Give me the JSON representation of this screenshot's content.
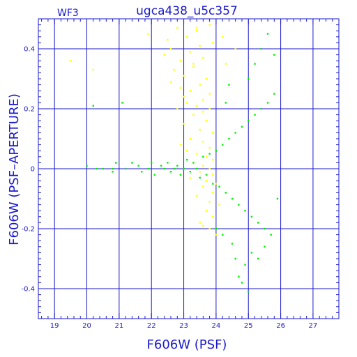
{
  "chart_data": {
    "type": "scatter",
    "title": "ugca438_u5c357",
    "panel_label": "WF3",
    "xlabel": "F606W (PSF)",
    "ylabel": "F606W (PSF–APERTURE)",
    "xlim": [
      18.5,
      27.8
    ],
    "ylim": [
      -0.5,
      0.5
    ],
    "x_ticks": [
      19,
      20,
      21,
      22,
      23,
      24,
      25,
      26,
      27
    ],
    "x_tick_labels": [
      "19",
      "20",
      "21",
      "22",
      "23",
      "24",
      "25",
      "26",
      "27"
    ],
    "y_ticks": [
      -0.4,
      -0.2,
      0,
      0.2,
      0.4
    ],
    "y_tick_labels": [
      "-0.4",
      "-0.2",
      "0",
      "0.2",
      "0.4"
    ],
    "grid": true,
    "colors": {
      "frame": "#1a1acc",
      "text": "#1a1acc"
    },
    "series": [
      {
        "color": "#ffff00",
        "points": [
          [
            19.5,
            0.36
          ],
          [
            20.2,
            0.33
          ],
          [
            21.9,
            0.45
          ],
          [
            22.5,
            0.43
          ],
          [
            22.6,
            0.4
          ],
          [
            22.8,
            0.47
          ],
          [
            22.9,
            0.36
          ],
          [
            23.1,
            0.44
          ],
          [
            23.2,
            0.39
          ],
          [
            23.4,
            0.46
          ],
          [
            23.5,
            0.41
          ],
          [
            23.6,
            0.37
          ],
          [
            23.8,
            0.48
          ],
          [
            22.7,
            0.33
          ],
          [
            23.0,
            0.31
          ],
          [
            23.3,
            0.34
          ],
          [
            23.7,
            0.3
          ],
          [
            22.9,
            0.27
          ],
          [
            23.2,
            0.26
          ],
          [
            23.5,
            0.28
          ],
          [
            23.8,
            0.25
          ],
          [
            23.1,
            0.22
          ],
          [
            23.4,
            0.21
          ],
          [
            23.6,
            0.23
          ],
          [
            22.8,
            0.2
          ],
          [
            23.3,
            0.18
          ],
          [
            23.7,
            0.16
          ],
          [
            23.0,
            0.15
          ],
          [
            23.5,
            0.13
          ],
          [
            23.9,
            0.12
          ],
          [
            23.2,
            0.1
          ],
          [
            23.6,
            0.09
          ],
          [
            23.8,
            0.07
          ],
          [
            23.1,
            0.06
          ],
          [
            23.4,
            0.05
          ],
          [
            23.7,
            0.04
          ],
          [
            23.9,
            0.03
          ],
          [
            23.3,
            0.02
          ],
          [
            23.6,
            0.01
          ],
          [
            23.8,
            0.0
          ],
          [
            23.5,
            -0.01
          ],
          [
            23.9,
            -0.02
          ],
          [
            23.2,
            -0.03
          ],
          [
            23.7,
            -0.04
          ],
          [
            24.0,
            -0.05
          ],
          [
            23.6,
            -0.06
          ],
          [
            23.9,
            -0.08
          ],
          [
            23.4,
            -0.09
          ],
          [
            23.8,
            -0.11
          ],
          [
            24.1,
            -0.12
          ],
          [
            23.7,
            -0.14
          ],
          [
            23.9,
            -0.16
          ],
          [
            23.5,
            -0.18
          ],
          [
            23.8,
            -0.2
          ],
          [
            24.0,
            -0.22
          ],
          [
            23.6,
            -0.19
          ],
          [
            23.3,
            0.35
          ],
          [
            22.6,
            0.29
          ],
          [
            23.9,
            0.42
          ],
          [
            23.4,
            0.47
          ],
          [
            22.4,
            0.38
          ],
          [
            24.3,
            0.35
          ],
          [
            24.6,
            0.4
          ],
          [
            24.2,
            0.44
          ],
          [
            23.0,
            0.24
          ],
          [
            23.6,
            0.19
          ],
          [
            22.9,
            0.08
          ],
          [
            23.8,
            0.2
          ]
        ]
      },
      {
        "color": "#00ee00",
        "points": [
          [
            20.0,
            0.01
          ],
          [
            20.2,
            0.21
          ],
          [
            20.3,
            0.0
          ],
          [
            20.5,
            0.0
          ],
          [
            20.8,
            0.0
          ],
          [
            20.8,
            -0.01
          ],
          [
            20.9,
            0.02
          ],
          [
            21.1,
            0.22
          ],
          [
            21.2,
            0.0
          ],
          [
            21.4,
            0.02
          ],
          [
            21.6,
            0.01
          ],
          [
            21.7,
            -0.01
          ],
          [
            21.9,
            0.0
          ],
          [
            22.0,
            0.02
          ],
          [
            22.1,
            -0.02
          ],
          [
            22.3,
            0.01
          ],
          [
            22.4,
            0.0
          ],
          [
            22.5,
            0.02
          ],
          [
            22.6,
            -0.01
          ],
          [
            22.7,
            0.0
          ],
          [
            22.8,
            0.01
          ],
          [
            22.9,
            -0.02
          ],
          [
            23.0,
            0.0
          ],
          [
            23.1,
            0.03
          ],
          [
            23.2,
            -0.01
          ],
          [
            23.3,
            0.02
          ],
          [
            23.4,
            0.0
          ],
          [
            23.5,
            -0.03
          ],
          [
            23.6,
            0.04
          ],
          [
            23.7,
            -0.02
          ],
          [
            23.8,
            0.05
          ],
          [
            23.9,
            -0.05
          ],
          [
            24.0,
            0.06
          ],
          [
            24.1,
            -0.06
          ],
          [
            24.2,
            0.08
          ],
          [
            24.3,
            -0.08
          ],
          [
            24.4,
            0.1
          ],
          [
            24.5,
            -0.1
          ],
          [
            24.6,
            0.12
          ],
          [
            24.7,
            -0.12
          ],
          [
            24.8,
            0.14
          ],
          [
            24.9,
            -0.14
          ],
          [
            25.0,
            0.16
          ],
          [
            25.1,
            -0.16
          ],
          [
            25.2,
            0.18
          ],
          [
            25.3,
            -0.18
          ],
          [
            25.4,
            0.2
          ],
          [
            25.5,
            -0.2
          ],
          [
            25.6,
            0.22
          ],
          [
            25.7,
            -0.22
          ],
          [
            25.8,
            0.25
          ],
          [
            25.9,
            -0.1
          ],
          [
            25.0,
            0.3
          ],
          [
            25.2,
            0.35
          ],
          [
            25.4,
            0.4
          ],
          [
            25.6,
            0.45
          ],
          [
            25.8,
            0.38
          ],
          [
            25.1,
            -0.28
          ],
          [
            25.3,
            -0.3
          ],
          [
            25.5,
            -0.26
          ],
          [
            24.9,
            -0.32
          ],
          [
            24.7,
            -0.36
          ],
          [
            24.6,
            -0.3
          ],
          [
            24.8,
            -0.38
          ],
          [
            25.0,
            -0.41
          ],
          [
            24.5,
            -0.25
          ],
          [
            24.2,
            -0.22
          ],
          [
            24.0,
            -0.2
          ],
          [
            24.4,
            0.28
          ],
          [
            24.3,
            0.22
          ]
        ]
      }
    ]
  }
}
